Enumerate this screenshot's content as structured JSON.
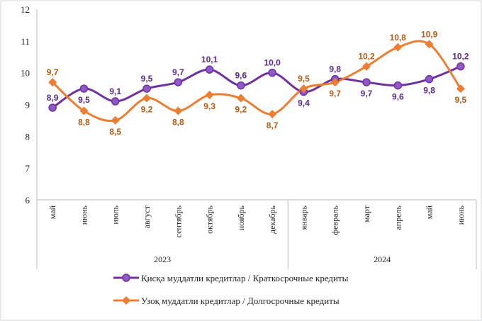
{
  "chart_data": {
    "type": "line",
    "categories": [
      "май",
      "июнь",
      "июль",
      "август",
      "сентябрь",
      "октябрь",
      "ноябрь",
      "декабрь",
      "январь",
      "февраль",
      "март",
      "апрель",
      "май",
      "июнь"
    ],
    "year_groups": [
      {
        "label": "2023",
        "span": 8
      },
      {
        "label": "2024",
        "span": 6
      }
    ],
    "ylim": [
      6,
      12
    ],
    "yticks": [
      "6",
      "7",
      "8",
      "9",
      "10",
      "11",
      "12"
    ],
    "grid": false,
    "legend_position": "bottom",
    "series": [
      {
        "name": "Қисқа муддатли кредитлар  / Краткосрочные кредиты",
        "color": "#7030a0",
        "marker": "circle",
        "values": [
          8.9,
          9.5,
          9.1,
          9.5,
          9.7,
          10.1,
          9.6,
          10.0,
          9.4,
          9.8,
          9.7,
          9.6,
          9.8,
          10.2
        ],
        "labels": [
          "8,9",
          "9,5",
          "9,1",
          "9,5",
          "9,7",
          "10,1",
          "9,6",
          "10,0",
          "9,4",
          "9,8",
          "9,7",
          "9,6",
          "9,8",
          "10,2"
        ]
      },
      {
        "name": "Узоқ муддатли  кредитлар  / Долгосрочные кредиты",
        "color": "#ed7d31",
        "marker": "diamond",
        "values": [
          9.7,
          8.8,
          8.5,
          9.2,
          8.8,
          9.3,
          9.2,
          8.7,
          9.5,
          9.7,
          10.2,
          10.8,
          10.9,
          9.5
        ],
        "labels": [
          "9,7",
          "8,8",
          "8,5",
          "9,2",
          "8,8",
          "9,3",
          "9,2",
          "8,7",
          "9,5",
          "9,7",
          "10,2",
          "10,8",
          "10,9",
          "9,5"
        ]
      }
    ]
  }
}
